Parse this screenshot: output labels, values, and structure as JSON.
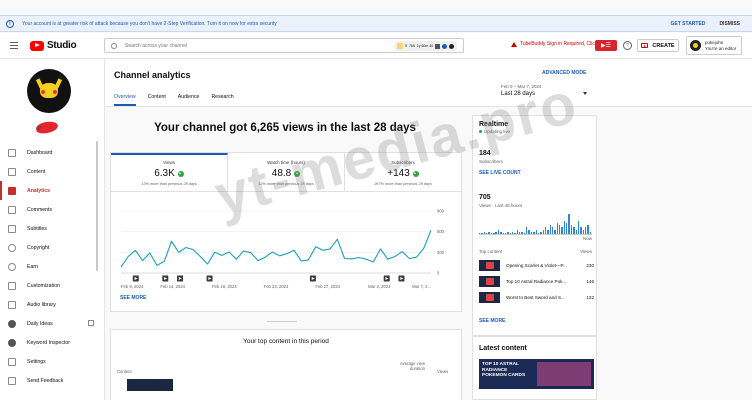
{
  "banner": {
    "message": "Your account is at greater risk of attack because you don't have 2-Step Verification. Turn it on now for extra security",
    "get_started": "GET STARTED",
    "dismiss": "DISMISS"
  },
  "header": {
    "logo_text": "Studio",
    "search_placeholder": "Search across your channel",
    "extension": {
      "v1": "5",
      "v2": "765",
      "sub": "1y 60m 40"
    },
    "tubebuddy_warning": "TubeBuddy Sign in Required, Click Here",
    "help": "?",
    "create": "CREATE",
    "account": {
      "name": "pokejohn",
      "role": "You're an editor"
    }
  },
  "sidebar": {
    "channel_label": "p",
    "items": [
      {
        "label": "Dashboard",
        "icon": "dashboard-icon"
      },
      {
        "label": "Content",
        "icon": "content-icon"
      },
      {
        "label": "Analytics",
        "icon": "analytics-icon"
      },
      {
        "label": "Comments",
        "icon": "comments-icon"
      },
      {
        "label": "Subtitles",
        "icon": "subtitles-icon"
      },
      {
        "label": "Copyright",
        "icon": "copyright-icon"
      },
      {
        "label": "Earn",
        "icon": "earn-icon"
      },
      {
        "label": "Customization",
        "icon": "customization-icon"
      },
      {
        "label": "Audio library",
        "icon": "audio-library-icon"
      },
      {
        "label": "Daily Ideas",
        "icon": "daily-ideas-icon"
      },
      {
        "label": "Keyword Inspector",
        "icon": "keyword-inspector-icon"
      },
      {
        "label": "Settings",
        "icon": "settings-icon"
      },
      {
        "label": "Send Feedback",
        "icon": "feedback-icon"
      }
    ],
    "active_index": 2
  },
  "main": {
    "title": "Channel analytics",
    "tabs": [
      "Overview",
      "Content",
      "Audience",
      "Research"
    ],
    "active_tab": 0,
    "advanced_mode": "ADVANCED MODE",
    "date_range_sub": "Feb 9 – Mar 7, 2024",
    "date_range": "Last 28 days",
    "headline": "Your channel got 6,265 views in the last 28 days",
    "metrics": [
      {
        "label": "Views",
        "value": "6.3K",
        "change": "13% more than previous 28 days"
      },
      {
        "label": "Watch time (hours)",
        "value": "48.8",
        "change": "12% more than previous 28 days"
      },
      {
        "label": "Subscribers",
        "value": "+143",
        "change": "267% more than previous 28 days"
      }
    ],
    "see_more": "SEE MORE",
    "top_content": {
      "title": "Your top content in this period",
      "col_content": "Content",
      "col_avg_1": "Average view",
      "col_avg_2": "duration",
      "col_views": "Views"
    }
  },
  "chart_data": {
    "type": "line",
    "series": [
      {
        "values": [
          85,
          240,
          330,
          180,
          290,
          110,
          170,
          460,
          300,
          370,
          340,
          240,
          130,
          300,
          255,
          305,
          200,
          320,
          295,
          180,
          230,
          305,
          250,
          280,
          330,
          175,
          190,
          380,
          330,
          350,
          490,
          210,
          205,
          225,
          200,
          160,
          350,
          200,
          240,
          310,
          210,
          230,
          360,
          620
        ]
      }
    ],
    "y_ticks": [
      0,
      300,
      600,
      900
    ],
    "ylim": [
      0,
      900
    ],
    "x_tick_labels": [
      "Feb 9, 2024",
      "Feb 14, 2024",
      "Feb 18, 2024",
      "Feb 23, 2024",
      "Feb 27, 2024",
      "Mar 3, 2024",
      "Mar 7, 2..."
    ],
    "line_color": "#1aa1b8",
    "grid": true
  },
  "realtime": {
    "title": "Realtime",
    "status": "Updating live",
    "subs_value": "184",
    "subs_label": "Subscribers",
    "see_live": "SEE LIVE COUNT",
    "views_value": "705",
    "views_label": "Views · Last 48 hours",
    "hourly_views": [
      0,
      0,
      1,
      0,
      1,
      0,
      0,
      1,
      2,
      1,
      0,
      0,
      1,
      0,
      1,
      0,
      2,
      1,
      1,
      0,
      3,
      2,
      1,
      1,
      2,
      0,
      1,
      2,
      3,
      2,
      4,
      3,
      2,
      5,
      4,
      3,
      6,
      5,
      9,
      4,
      3,
      2,
      6,
      3,
      2,
      3,
      4,
      1
    ],
    "now": "Now",
    "top_content_label": "Top content",
    "views_col": "Views",
    "items": [
      {
        "title": "Opening Scarlet & Violet—P...",
        "views": "230"
      },
      {
        "title": "Top 10 Astral Radiance Pok...",
        "views": "146"
      },
      {
        "title": "Worst to Best Sword and S...",
        "views": "132"
      }
    ],
    "see_more": "SEE MORE"
  },
  "latest_content": {
    "title": "Latest content",
    "thumb_text": "TOP 10 ASTRAL RADIANCE POKEMON CARDS"
  },
  "watermark": "yt-media.pro"
}
